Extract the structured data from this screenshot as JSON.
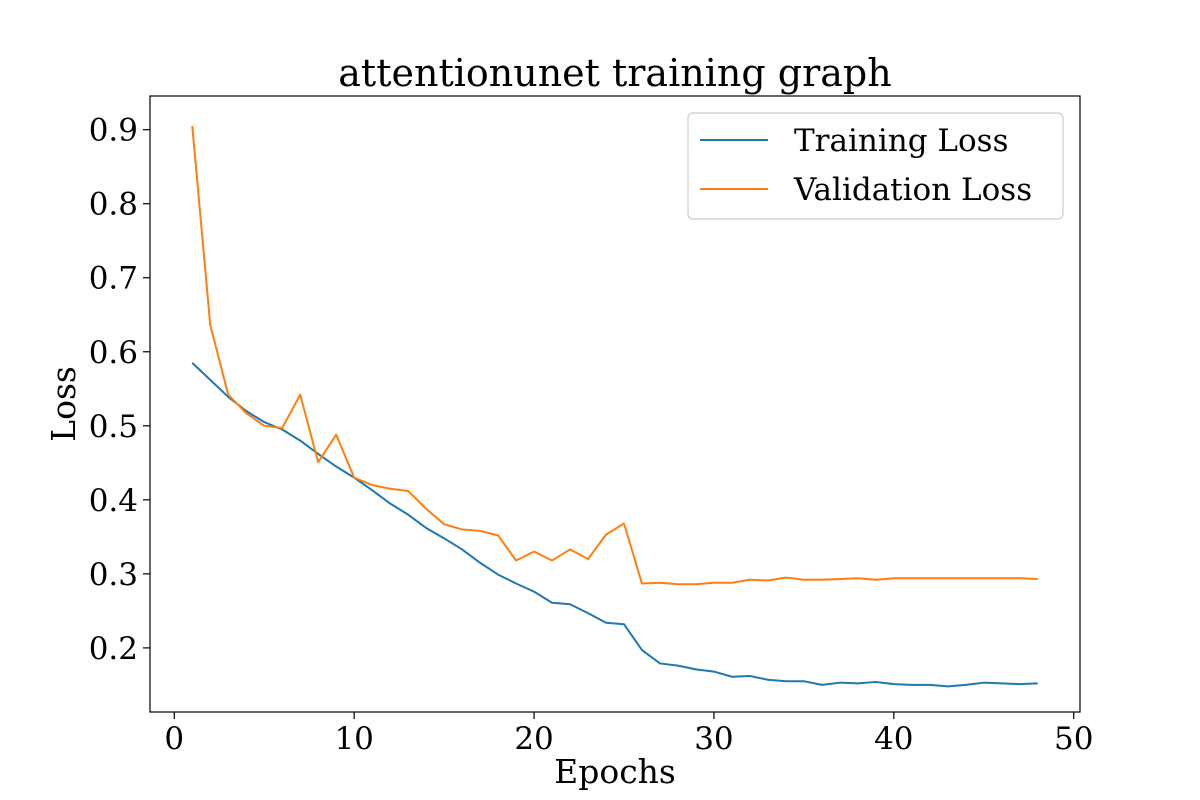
{
  "chart_data": {
    "type": "line",
    "title": "attentionunet training graph",
    "xlabel": "Epochs",
    "ylabel": "Loss",
    "xlim": [
      -1.35,
      50.35
    ],
    "ylim": [
      0.1134,
      0.9455
    ],
    "x_ticks": [
      0,
      10,
      20,
      30,
      40,
      50
    ],
    "y_ticks": [
      0.2,
      0.3,
      0.4,
      0.5,
      0.6,
      0.7,
      0.8,
      0.9
    ],
    "x_tick_labels": [
      "0",
      "10",
      "20",
      "30",
      "40",
      "50"
    ],
    "y_tick_labels": [
      "0.2",
      "0.3",
      "0.4",
      "0.5",
      "0.6",
      "0.7",
      "0.8",
      "0.9"
    ],
    "grid": false,
    "legend": "upper right",
    "x": [
      1,
      2,
      3,
      4,
      5,
      6,
      7,
      8,
      9,
      10,
      11,
      12,
      13,
      14,
      15,
      16,
      17,
      18,
      19,
      20,
      21,
      22,
      23,
      24,
      25,
      26,
      27,
      28,
      29,
      30,
      31,
      32,
      33,
      34,
      35,
      36,
      37,
      38,
      39,
      40,
      41,
      42,
      43,
      44,
      45,
      46,
      47,
      48
    ],
    "series": [
      {
        "name": "Training Loss",
        "color": "#1f77b4",
        "values": [
          0.585,
          0.562,
          0.539,
          0.52,
          0.505,
          0.495,
          0.48,
          0.462,
          0.445,
          0.43,
          0.413,
          0.395,
          0.38,
          0.362,
          0.348,
          0.333,
          0.315,
          0.299,
          0.287,
          0.276,
          0.261,
          0.259,
          0.247,
          0.234,
          0.232,
          0.197,
          0.179,
          0.176,
          0.171,
          0.168,
          0.161,
          0.162,
          0.157,
          0.155,
          0.155,
          0.15,
          0.153,
          0.152,
          0.154,
          0.151,
          0.15,
          0.15,
          0.148,
          0.15,
          0.153,
          0.152,
          0.151,
          0.152
        ]
      },
      {
        "name": "Validation Loss",
        "color": "#ff7f0e",
        "values": [
          0.905,
          0.636,
          0.542,
          0.517,
          0.5,
          0.497,
          0.542,
          0.451,
          0.488,
          0.43,
          0.42,
          0.415,
          0.412,
          0.388,
          0.367,
          0.36,
          0.358,
          0.352,
          0.318,
          0.33,
          0.318,
          0.333,
          0.32,
          0.353,
          0.368,
          0.287,
          0.288,
          0.286,
          0.286,
          0.288,
          0.288,
          0.292,
          0.291,
          0.295,
          0.292,
          0.292,
          0.293,
          0.294,
          0.292,
          0.294,
          0.294,
          0.294,
          0.294,
          0.294,
          0.294,
          0.294,
          0.294,
          0.293
        ]
      }
    ]
  }
}
